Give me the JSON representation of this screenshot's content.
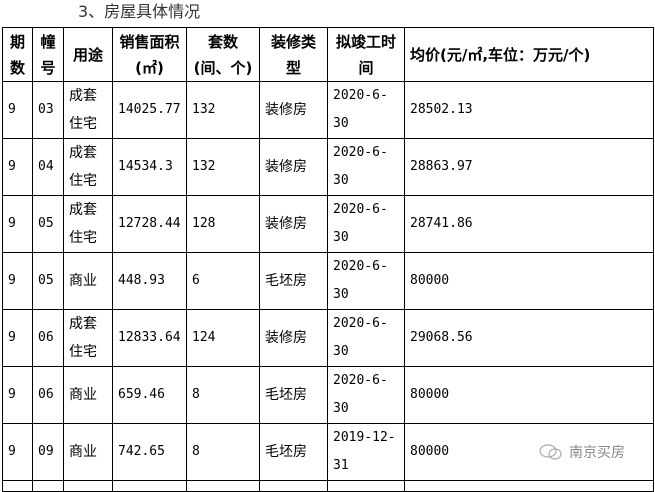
{
  "section_title": "3、房屋具体情况",
  "table": {
    "headers": [
      "期数",
      "幢号",
      "用途",
      "销售面积(㎡)",
      "套数(间、个)",
      "装修类型",
      "拟竣工时间",
      "均价(元/㎡,车位：万元/个)"
    ],
    "rows": [
      [
        "9",
        "03",
        "成套住宅",
        "14025.77",
        "132",
        "装修房",
        "2020-6-30",
        "28502.13"
      ],
      [
        "9",
        "04",
        "成套住宅",
        "14534.3",
        "132",
        "装修房",
        "2020-6-30",
        "28863.97"
      ],
      [
        "9",
        "05",
        "成套住宅",
        "12728.44",
        "128",
        "装修房",
        "2020-6-30",
        "28741.86"
      ],
      [
        "9",
        "05",
        "商业",
        "448.93",
        "6",
        "毛坯房",
        "2020-6-30",
        "80000"
      ],
      [
        "9",
        "06",
        "成套住宅",
        "12833.64",
        "124",
        "装修房",
        "2020-6-30",
        "29068.56"
      ],
      [
        "9",
        "06",
        "商业",
        "659.46",
        "8",
        "毛坯房",
        "2020-6-30",
        "80000"
      ],
      [
        "9",
        "09",
        "商业",
        "742.65",
        "8",
        "毛坯房",
        "2019-12-31",
        "80000"
      ]
    ]
  },
  "watermark": {
    "text": "南京买房",
    "icon": "wechat-icon"
  }
}
